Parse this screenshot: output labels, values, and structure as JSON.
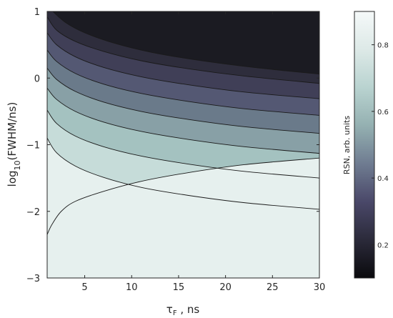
{
  "chart_data": {
    "type": "contour",
    "xlabel_main": "τ",
    "xlabel_sub": "F",
    "xlabel_rest": " , ns",
    "ylabel_main": "log",
    "ylabel_sub": "10",
    "ylabel_rest": "(FWHM/ns)",
    "xlim": [
      1,
      30
    ],
    "ylim": [
      -3,
      1
    ],
    "x_ticks": [
      5,
      10,
      15,
      20,
      25,
      30
    ],
    "x_tick_labels": [
      "5",
      "10",
      "15",
      "20",
      "25",
      "30"
    ],
    "y_ticks": [
      1,
      0,
      -1,
      -2,
      -3
    ],
    "y_tick_labels": [
      "1",
      "0",
      "−1",
      "−2",
      "−3"
    ],
    "colorbar": {
      "label": "RSN, arb. units",
      "range": [
        0.1,
        0.9
      ],
      "ticks": [
        0.2,
        0.4,
        0.6,
        0.8
      ],
      "tick_labels": [
        "0.2",
        "0.4",
        "0.6",
        "0.8"
      ],
      "colors": [
        "#0a0a0d",
        "#2b2a3a",
        "#4a4869",
        "#6f7c91",
        "#94b0b1",
        "#b9d3d0",
        "#dde9e7",
        "#f5f9f9"
      ]
    },
    "contour_levels": [
      0.15,
      0.25,
      0.35,
      0.45,
      0.55,
      0.65,
      0.75,
      0.85
    ],
    "contour_fill_colors": [
      "#1b1b22",
      "#2e2d3c",
      "#403f57",
      "#545873",
      "#6a7a8a",
      "#88a0a6",
      "#a4c2c0",
      "#c6dcd9",
      "#e6f0ee"
    ],
    "contour_lines": [
      {
        "level": 0.15,
        "x": [
          1.6,
          3,
          5,
          8,
          12,
          17,
          23,
          30
        ],
        "y": [
          1.0,
          0.83,
          0.68,
          0.53,
          0.39,
          0.27,
          0.16,
          0.06
        ]
      },
      {
        "level": 0.25,
        "x": [
          1,
          2,
          4,
          7,
          11,
          16,
          22,
          30
        ],
        "y": [
          0.92,
          0.72,
          0.55,
          0.4,
          0.26,
          0.14,
          0.03,
          -0.08
        ]
      },
      {
        "level": 0.35,
        "x": [
          1,
          2,
          4,
          7,
          11,
          16,
          22,
          30
        ],
        "y": [
          0.68,
          0.5,
          0.32,
          0.16,
          0.02,
          -0.1,
          -0.21,
          -0.31
        ]
      },
      {
        "level": 0.45,
        "x": [
          1,
          2,
          4,
          7,
          11,
          16,
          22,
          30
        ],
        "y": [
          0.42,
          0.25,
          0.07,
          -0.09,
          -0.23,
          -0.35,
          -0.46,
          -0.56
        ]
      },
      {
        "level": 0.55,
        "x": [
          1,
          2,
          4,
          7,
          11,
          16,
          22,
          30
        ],
        "y": [
          0.15,
          -0.02,
          -0.2,
          -0.36,
          -0.5,
          -0.62,
          -0.73,
          -0.83
        ]
      },
      {
        "level": 0.65,
        "x": [
          1,
          2,
          4,
          7,
          11,
          16,
          22,
          30
        ],
        "y": [
          -0.15,
          -0.32,
          -0.5,
          -0.66,
          -0.8,
          -0.92,
          -1.03,
          -1.13
        ]
      },
      {
        "level": 0.75,
        "x": [
          1,
          2,
          4,
          7,
          11,
          16,
          22,
          30
        ],
        "y": [
          -0.48,
          -0.68,
          -0.87,
          -1.03,
          -1.17,
          -1.29,
          -1.4,
          -1.5
        ]
      },
      {
        "level": 0.85,
        "x": [
          1,
          2,
          4,
          7,
          11,
          16,
          22,
          30
        ],
        "y": [
          -0.9,
          -1.12,
          -1.32,
          -1.49,
          -1.64,
          -1.76,
          -1.87,
          -1.97
        ]
      },
      {
        "level": 0.9,
        "x": [
          1,
          1.5,
          2.5,
          4,
          7,
          11,
          16,
          22,
          30
        ],
        "y": [
          -2.35,
          -2.2,
          -2.0,
          -1.85,
          -1.7,
          -1.55,
          -1.42,
          -1.3,
          -1.2
        ]
      }
    ]
  }
}
